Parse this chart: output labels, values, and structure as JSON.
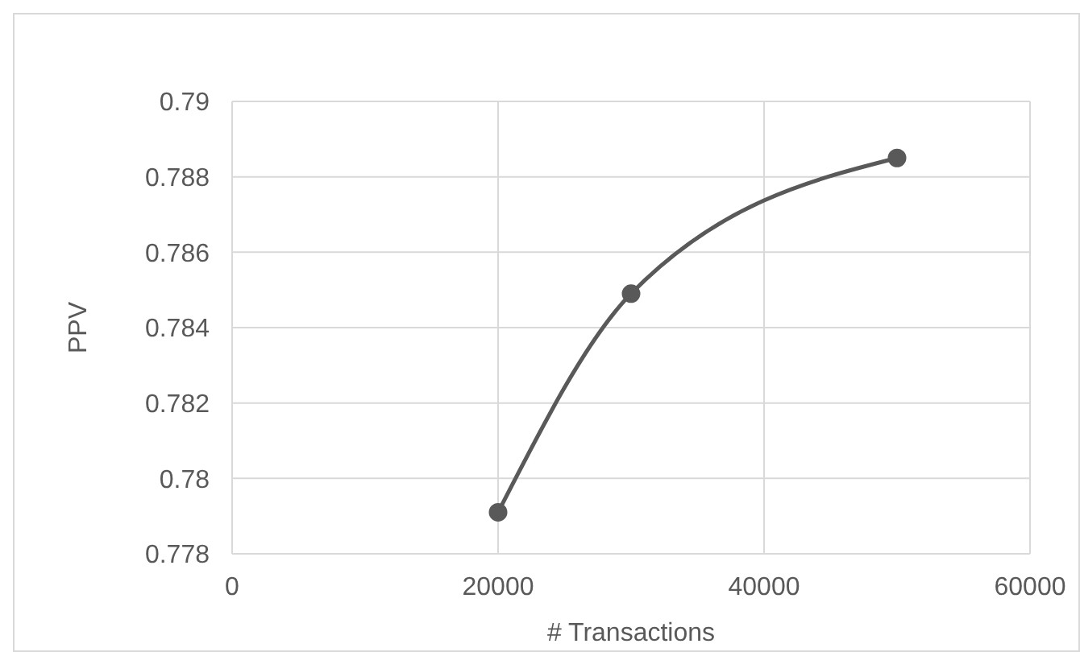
{
  "chart_data": {
    "type": "line",
    "xlabel": "# Transactions",
    "ylabel": "PPV",
    "x": [
      20000,
      30000,
      50000
    ],
    "series": [
      {
        "color": "#595959",
        "values": [
          0.7791,
          0.7849,
          0.7885
        ]
      }
    ],
    "xlim": [
      0,
      60000
    ],
    "xticks": [
      0,
      20000,
      40000,
      60000
    ],
    "ylim": [
      0.778,
      0.79
    ],
    "yticks": [
      0.778,
      0.78,
      0.782,
      0.784,
      0.786,
      0.788,
      0.79
    ],
    "grid": true,
    "legend": false,
    "marker": "circle",
    "line_style": "solid"
  }
}
